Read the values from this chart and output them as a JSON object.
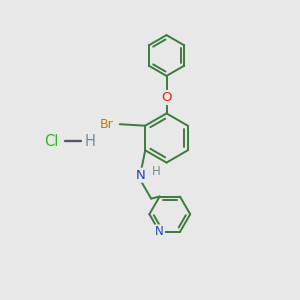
{
  "background_color": "#e8e8e8",
  "bond_color": "#3d7a3d",
  "bond_width": 1.4,
  "atom_colors": {
    "Br": "#b87820",
    "O": "#ee2200",
    "N": "#2244bb",
    "Cl": "#22bb22",
    "H": "#778899"
  },
  "font_size": 8.5,
  "fig_width": 3.0,
  "fig_height": 3.0,
  "dpi": 100
}
